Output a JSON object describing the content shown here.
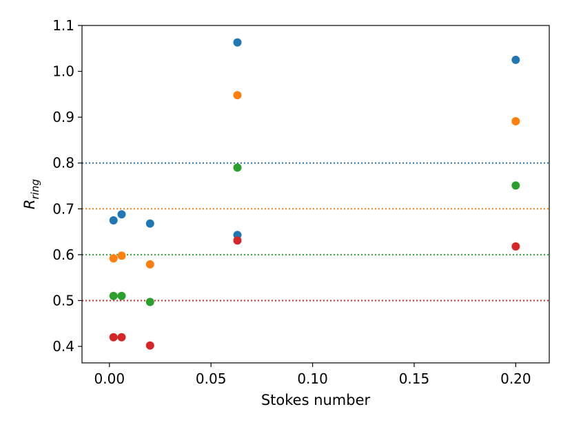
{
  "chart_data": {
    "type": "scatter",
    "title": "",
    "xlabel": "Stokes number",
    "ylabel": {
      "main": "R",
      "sub": "ring"
    },
    "xlim": [
      -0.0135,
      0.2165
    ],
    "ylim": [
      0.364,
      1.1
    ],
    "xticks": [
      {
        "value": 0.0,
        "label": "0.00"
      },
      {
        "value": 0.05,
        "label": "0.05"
      },
      {
        "value": 0.1,
        "label": "0.10"
      },
      {
        "value": 0.15,
        "label": "0.15"
      },
      {
        "value": 0.2,
        "label": "0.20"
      }
    ],
    "yticks": [
      {
        "value": 0.4,
        "label": "0.4"
      },
      {
        "value": 0.5,
        "label": "0.5"
      },
      {
        "value": 0.6,
        "label": "0.6"
      },
      {
        "value": 0.7,
        "label": "0.7"
      },
      {
        "value": 0.8,
        "label": "0.8"
      },
      {
        "value": 0.9,
        "label": "0.9"
      },
      {
        "value": 1.0,
        "label": "1.0"
      },
      {
        "value": 1.1,
        "label": "1.1"
      }
    ],
    "grid": false,
    "legend": "none",
    "reference_lines": [
      {
        "y": 0.8,
        "color": "#1f77b4",
        "style": "dotted"
      },
      {
        "y": 0.7,
        "color": "#ff7f0e",
        "style": "dotted"
      },
      {
        "y": 0.6,
        "color": "#2ca02c",
        "style": "dotted"
      },
      {
        "y": 0.5,
        "color": "#d62728",
        "style": "dotted"
      }
    ],
    "series": [
      {
        "color": "#1f77b4",
        "points": [
          [
            0.002,
            0.675
          ],
          [
            0.006,
            0.688
          ],
          [
            0.02,
            0.668
          ],
          [
            0.063,
            1.063
          ],
          [
            0.063,
            0.643
          ],
          [
            0.2,
            1.025
          ]
        ]
      },
      {
        "color": "#ff7f0e",
        "points": [
          [
            0.002,
            0.592
          ],
          [
            0.006,
            0.598
          ],
          [
            0.02,
            0.579
          ],
          [
            0.063,
            0.948
          ],
          [
            0.2,
            0.891
          ]
        ]
      },
      {
        "color": "#2ca02c",
        "points": [
          [
            0.002,
            0.51
          ],
          [
            0.006,
            0.51
          ],
          [
            0.02,
            0.497
          ],
          [
            0.063,
            0.79
          ],
          [
            0.2,
            0.751
          ]
        ]
      },
      {
        "color": "#d62728",
        "points": [
          [
            0.002,
            0.42
          ],
          [
            0.006,
            0.42
          ],
          [
            0.02,
            0.402
          ],
          [
            0.063,
            0.631
          ],
          [
            0.2,
            0.618
          ]
        ]
      }
    ]
  }
}
